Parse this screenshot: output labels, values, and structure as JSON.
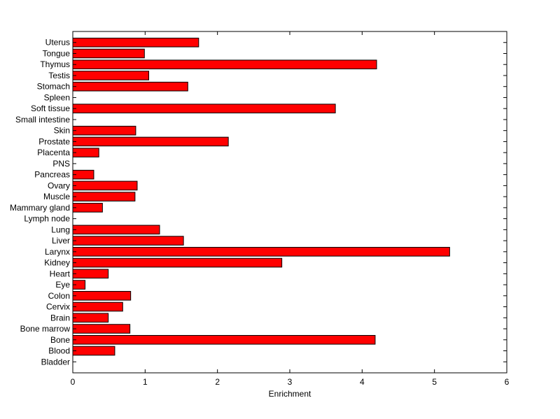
{
  "chart_data": {
    "type": "bar",
    "orientation": "horizontal",
    "title": "",
    "xlabel": "Enrichment",
    "ylabel": "",
    "xlim": [
      0,
      6
    ],
    "xticks": [
      "0",
      "1",
      "2",
      "3",
      "4",
      "5",
      "6"
    ],
    "grid": false,
    "bar_color": "#ff0000",
    "bar_edge_color": "#000000",
    "categories": [
      "Uterus",
      "Tongue",
      "Thymus",
      "Testis",
      "Stomach",
      "Spleen",
      "Soft tissue",
      "Small intestine",
      "Skin",
      "Prostate",
      "Placenta",
      "PNS",
      "Pancreas",
      "Ovary",
      "Muscle",
      "Mammary gland",
      "Lymph node",
      "Lung",
      "Liver",
      "Larynx",
      "Kidney",
      "Heart",
      "Eye",
      "Colon",
      "Cervix",
      "Brain",
      "Bone marrow",
      "Bone",
      "Blood",
      "Bladder"
    ],
    "values": [
      1.74,
      0.99,
      4.2,
      1.05,
      1.59,
      0,
      3.63,
      0,
      0.87,
      2.15,
      0.36,
      0,
      0.29,
      0.89,
      0.86,
      0.41,
      0,
      1.2,
      1.53,
      5.21,
      2.89,
      0.49,
      0.17,
      0.8,
      0.69,
      0.49,
      0.79,
      4.18,
      0.58,
      0
    ]
  }
}
